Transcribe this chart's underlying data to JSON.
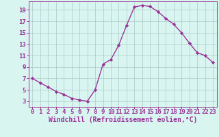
{
  "x": [
    0,
    1,
    2,
    3,
    4,
    5,
    6,
    7,
    8,
    9,
    10,
    11,
    12,
    13,
    14,
    15,
    16,
    17,
    18,
    19,
    20,
    21,
    22,
    23
  ],
  "y": [
    7,
    6.2,
    5.5,
    4.7,
    4.2,
    3.5,
    3.2,
    3.0,
    5.0,
    9.5,
    10.3,
    12.8,
    16.3,
    19.5,
    19.8,
    19.6,
    18.7,
    17.5,
    16.5,
    15.0,
    13.2,
    11.5,
    11.0,
    9.8
  ],
  "line_color": "#993399",
  "marker": "D",
  "markersize": 2.2,
  "linewidth": 1.0,
  "bg_color": "#d8f5f0",
  "grid_color": "#b0c8c8",
  "xlabel": "Windchill (Refroidissement éolien,°C)",
  "xlabel_color": "#993399",
  "tick_color": "#993399",
  "axis_color": "#993399",
  "xlim": [
    -0.5,
    23.5
  ],
  "ylim": [
    2.0,
    20.5
  ],
  "yticks": [
    3,
    5,
    7,
    9,
    11,
    13,
    15,
    17,
    19
  ],
  "xticks": [
    0,
    1,
    2,
    3,
    4,
    5,
    6,
    7,
    8,
    9,
    10,
    11,
    12,
    13,
    14,
    15,
    16,
    17,
    18,
    19,
    20,
    21,
    22,
    23
  ],
  "font_size": 6.5,
  "xlabel_fontsize": 7.0
}
